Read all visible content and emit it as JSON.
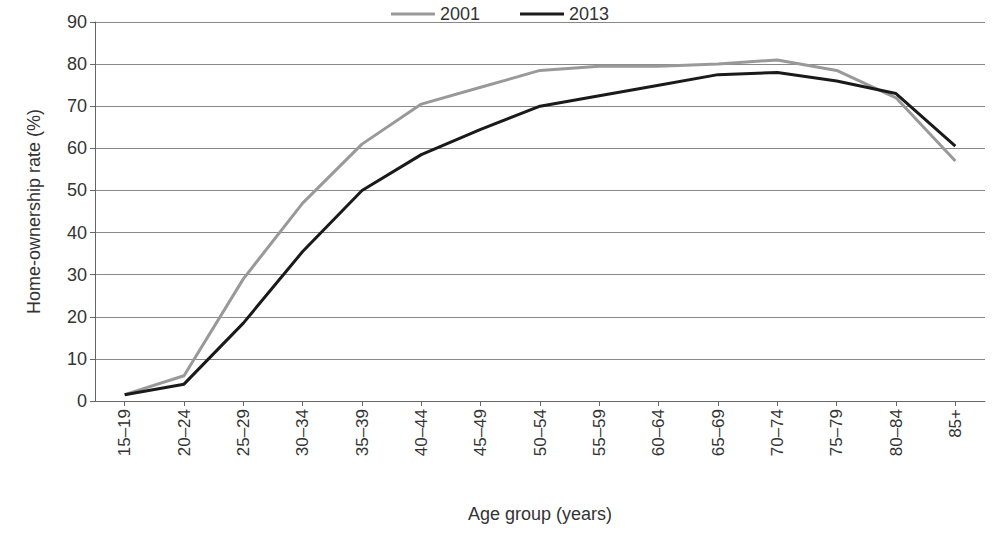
{
  "chart_data": {
    "type": "line",
    "x_label": "Age group (years)",
    "y_label": "Home-ownership rate (%)",
    "categories": [
      "15–19",
      "20–24",
      "25–29",
      "30–34",
      "35–39",
      "40–44",
      "45–49",
      "50–54",
      "55–59",
      "60–64",
      "65–69",
      "70–74",
      "75–79",
      "80–84",
      "85+"
    ],
    "series": [
      {
        "name": "2001",
        "color": "#999999",
        "values": [
          1.5,
          6,
          29,
          47,
          61,
          70.5,
          74.5,
          78.5,
          79.5,
          79.5,
          80,
          81,
          78.5,
          72,
          57
        ]
      },
      {
        "name": "2013",
        "color": "#1a1a1a",
        "values": [
          1.5,
          4,
          18.5,
          35.5,
          50,
          58.5,
          64.5,
          70,
          72.5,
          75,
          77.5,
          78,
          76,
          73,
          60.5
        ]
      }
    ],
    "ylim": [
      0,
      90
    ],
    "yticks": [
      0,
      10,
      20,
      30,
      40,
      50,
      60,
      70,
      80,
      90
    ],
    "grid": true,
    "legend": "top"
  }
}
